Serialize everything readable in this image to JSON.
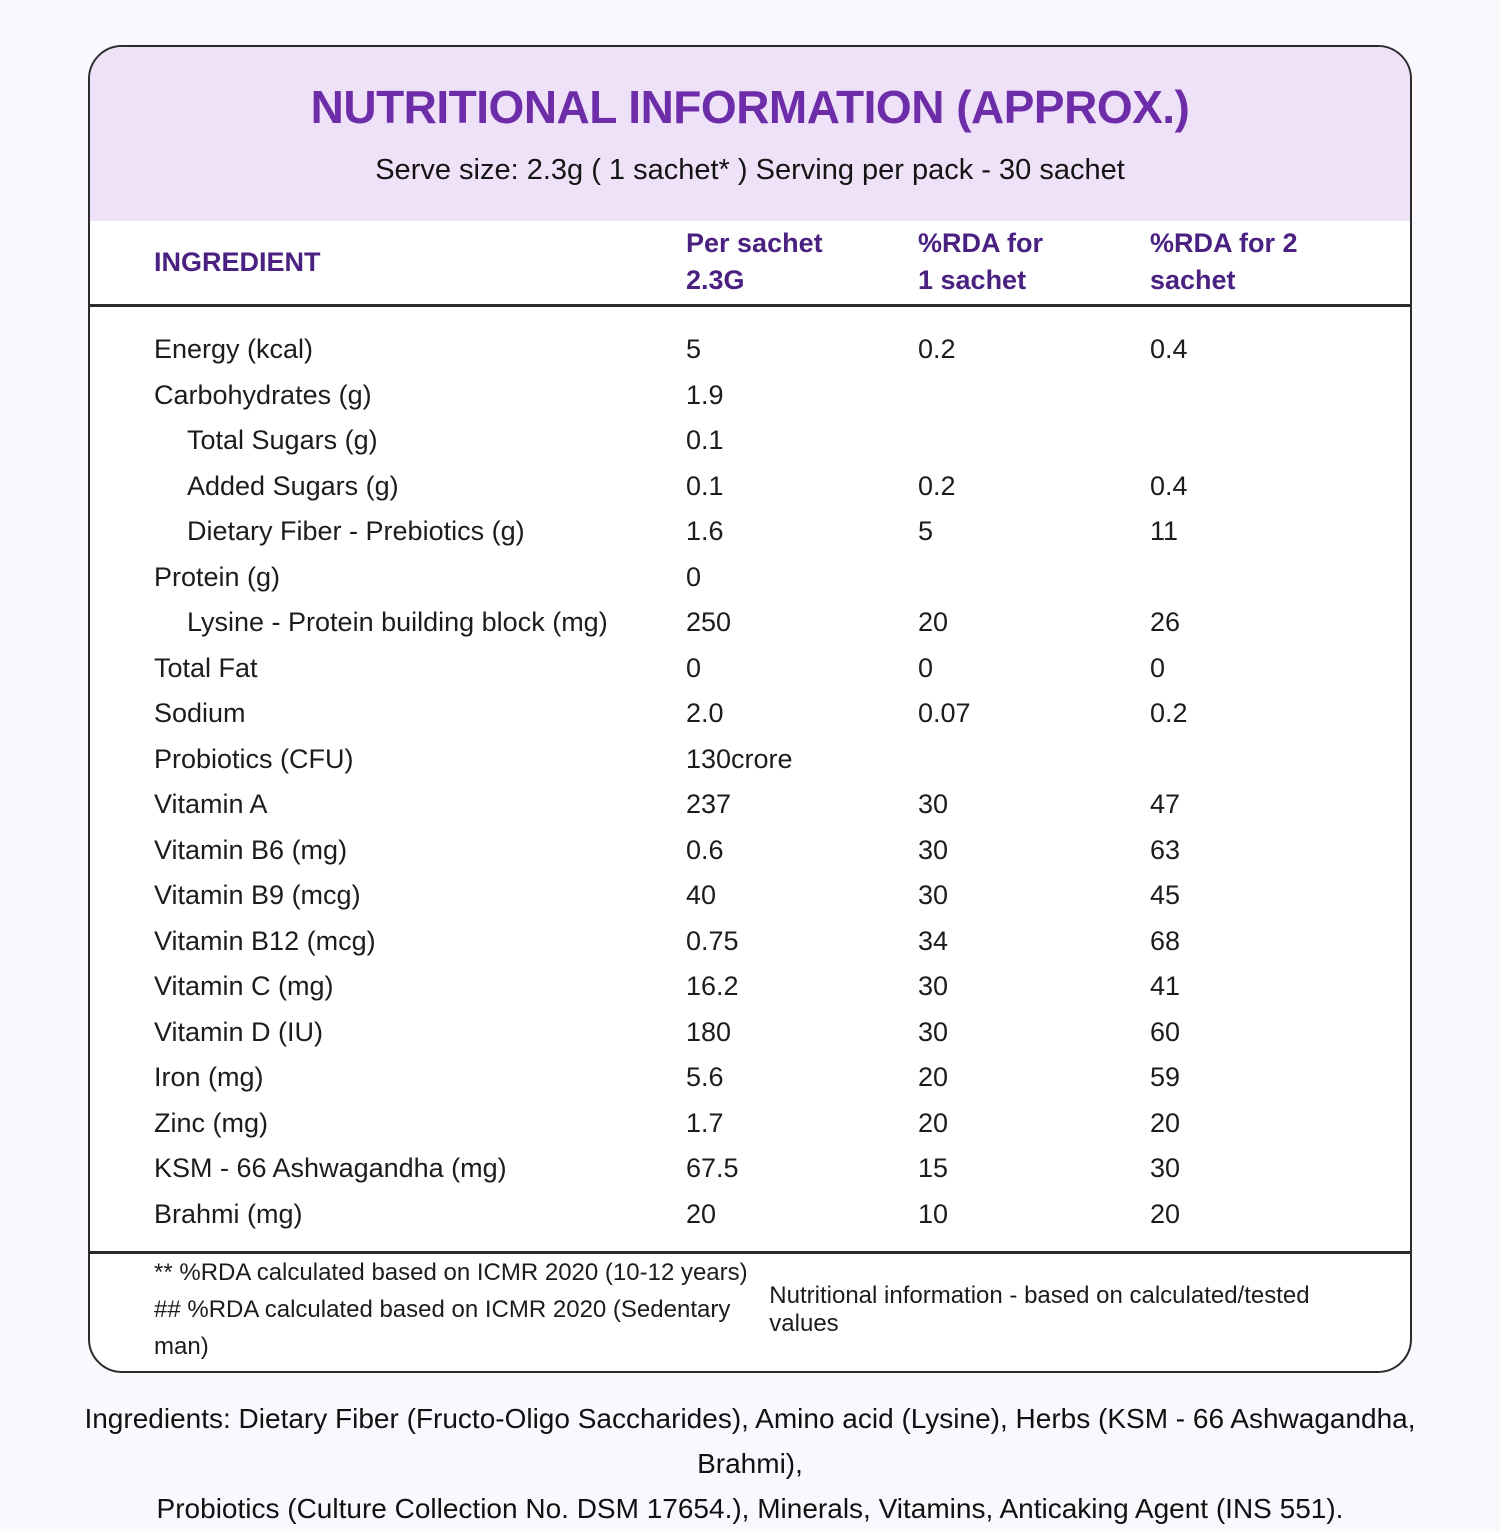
{
  "colors": {
    "page_bg": "#FAF7FD",
    "band_bg": "#EFE1F8",
    "title_purple": "#6D2DA8",
    "header_purple": "#4A2181",
    "text_dark": "#1C1C1C",
    "line_dark": "#2B2B2B"
  },
  "header": {
    "title": "NUTRITIONAL INFORMATION (APPROX.)",
    "subtitle": "Serve size: 2.3g ( 1 sachet* ) Serving per pack - 30 sachet"
  },
  "table": {
    "columns": [
      {
        "l1": "INGREDIENT",
        "l2": ""
      },
      {
        "l1": "Per sachet",
        "l2": "2.3G"
      },
      {
        "l1": "%RDA for",
        "l2": "1 sachet"
      },
      {
        "l1": "%RDA for 2",
        "l2": "sachet"
      }
    ],
    "rows": [
      {
        "label": "Energy (kcal)",
        "per_sachet": "5",
        "rda1": "0.2",
        "rda2": "0.4"
      },
      {
        "label": "Carbohydrates (g)",
        "per_sachet": "1.9",
        "rda1": "",
        "rda2": ""
      },
      {
        "label": "Total Sugars (g)",
        "per_sachet": "0.1",
        "rda1": "",
        "rda2": ""
      },
      {
        "label": "Added Sugars (g)",
        "per_sachet": "0.1",
        "rda1": "0.2",
        "rda2": "0.4"
      },
      {
        "label": "Dietary Fiber - Prebiotics (g)",
        "per_sachet": "1.6",
        "rda1": "5",
        "rda2": "11"
      },
      {
        "label": "Protein (g)",
        "per_sachet": "0",
        "rda1": "",
        "rda2": ""
      },
      {
        "label": "Lysine - Protein building block (mg)",
        "per_sachet": "250",
        "rda1": "20",
        "rda2": "26"
      },
      {
        "label": "Total Fat",
        "per_sachet": "0",
        "rda1": "0",
        "rda2": "0"
      },
      {
        "label": "Sodium",
        "per_sachet": "2.0",
        "rda1": "0.07",
        "rda2": "0.2"
      },
      {
        "label": "Probiotics (CFU)",
        "per_sachet": "130crore",
        "rda1": "",
        "rda2": ""
      },
      {
        "label": "Vitamin A",
        "per_sachet": "237",
        "rda1": "30",
        "rda2": "47"
      },
      {
        "label": "Vitamin B6 (mg)",
        "per_sachet": "0.6",
        "rda1": "30",
        "rda2": "63"
      },
      {
        "label": "Vitamin B9 (mcg)",
        "per_sachet": "40",
        "rda1": "30",
        "rda2": "45"
      },
      {
        "label": "Vitamin B12 (mcg)",
        "per_sachet": "0.75",
        "rda1": "34",
        "rda2": "68"
      },
      {
        "label": "Vitamin C (mg)",
        "per_sachet": "16.2",
        "rda1": "30",
        "rda2": "41"
      },
      {
        "label": "Vitamin D (IU)",
        "per_sachet": "180",
        "rda1": "30",
        "rda2": "60"
      },
      {
        "label": "Iron (mg)",
        "per_sachet": "5.6",
        "rda1": "20",
        "rda2": "59"
      },
      {
        "label": "Zinc (mg)",
        "per_sachet": "1.7",
        "rda1": "20",
        "rda2": "20"
      },
      {
        "label": "KSM - 66 Ashwagandha (mg)",
        "per_sachet": "67.5",
        "rda1": "15",
        "rda2": "30"
      },
      {
        "label": "Brahmi (mg)",
        "per_sachet": "20",
        "rda1": "10",
        "rda2": "20"
      }
    ]
  },
  "footnotes": {
    "note1": "** %RDA calculated based on ICMR 2020 (10-12 years)",
    "note2": "## %RDA calculated based on ICMR 2020 (Sedentary man)",
    "right": "Nutritional information - based on calculated/tested values"
  },
  "ingredients": {
    "line1": "Ingredients: Dietary Fiber (Fructo-Oligo Saccharides), Amino acid (Lysine), Herbs (KSM - 66 Ashwagandha, Brahmi),",
    "line2": "Probiotics (Culture Collection No. DSM 17654.), Minerals, Vitamins, Anticaking Agent (INS 551)."
  }
}
